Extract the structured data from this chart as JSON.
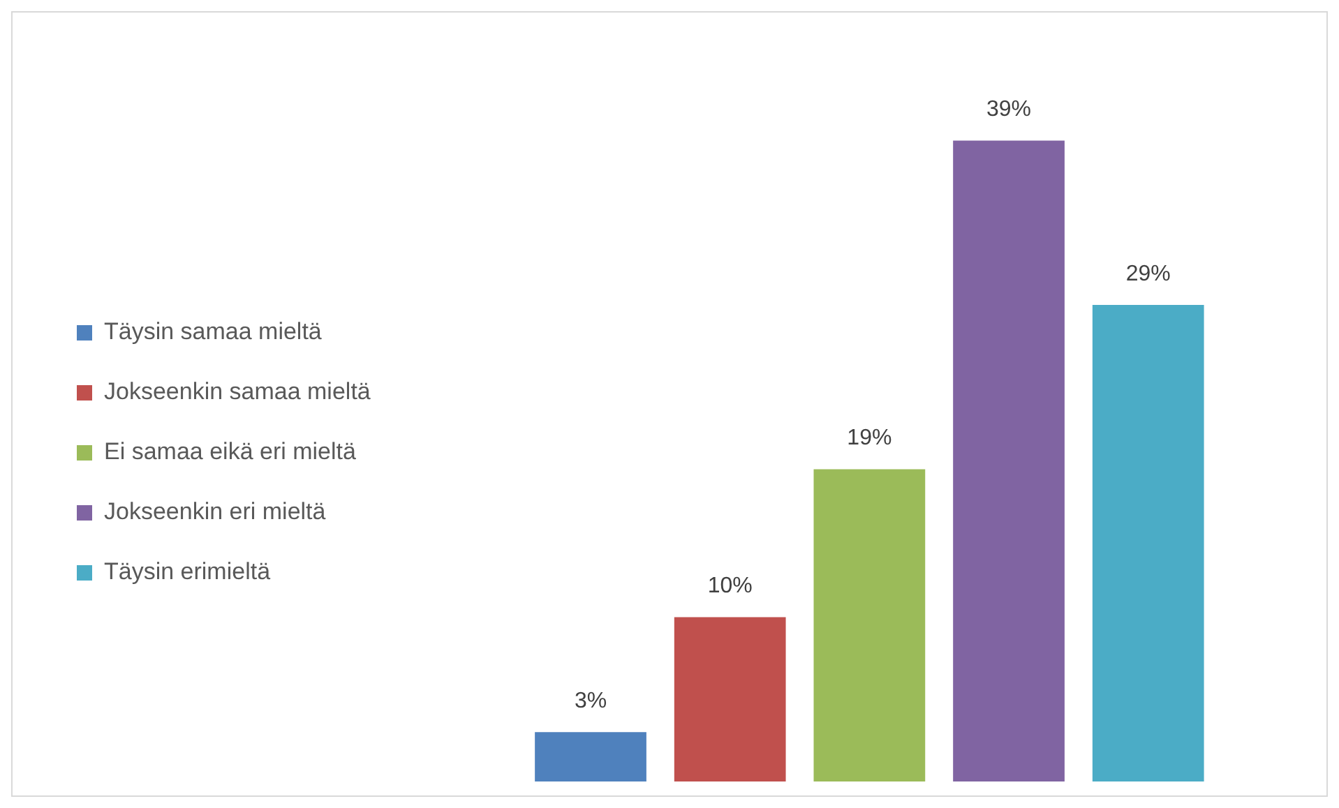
{
  "chart_data": {
    "type": "bar",
    "categories": [
      null
    ],
    "legend": "left",
    "series": [
      {
        "name": "Täysin samaa mieltä",
        "color": "#4f81bd",
        "values": [
          3
        ],
        "value_labels": [
          "3%"
        ]
      },
      {
        "name": "Jokseenkin samaa mieltä",
        "color": "#c0504d",
        "values": [
          10
        ],
        "value_labels": [
          "10%"
        ]
      },
      {
        "name": "Ei samaa eikä eri mieltä",
        "color": "#9bbb59",
        "values": [
          19
        ],
        "value_labels": [
          "19%"
        ]
      },
      {
        "name": "Jokseenkin eri mieltä",
        "color": "#8064a2",
        "values": [
          39
        ],
        "value_labels": [
          "39%"
        ]
      },
      {
        "name": "Täysin erimieltä",
        "color": "#4bacc6",
        "values": [
          29
        ],
        "value_labels": [
          "29%"
        ]
      }
    ]
  }
}
